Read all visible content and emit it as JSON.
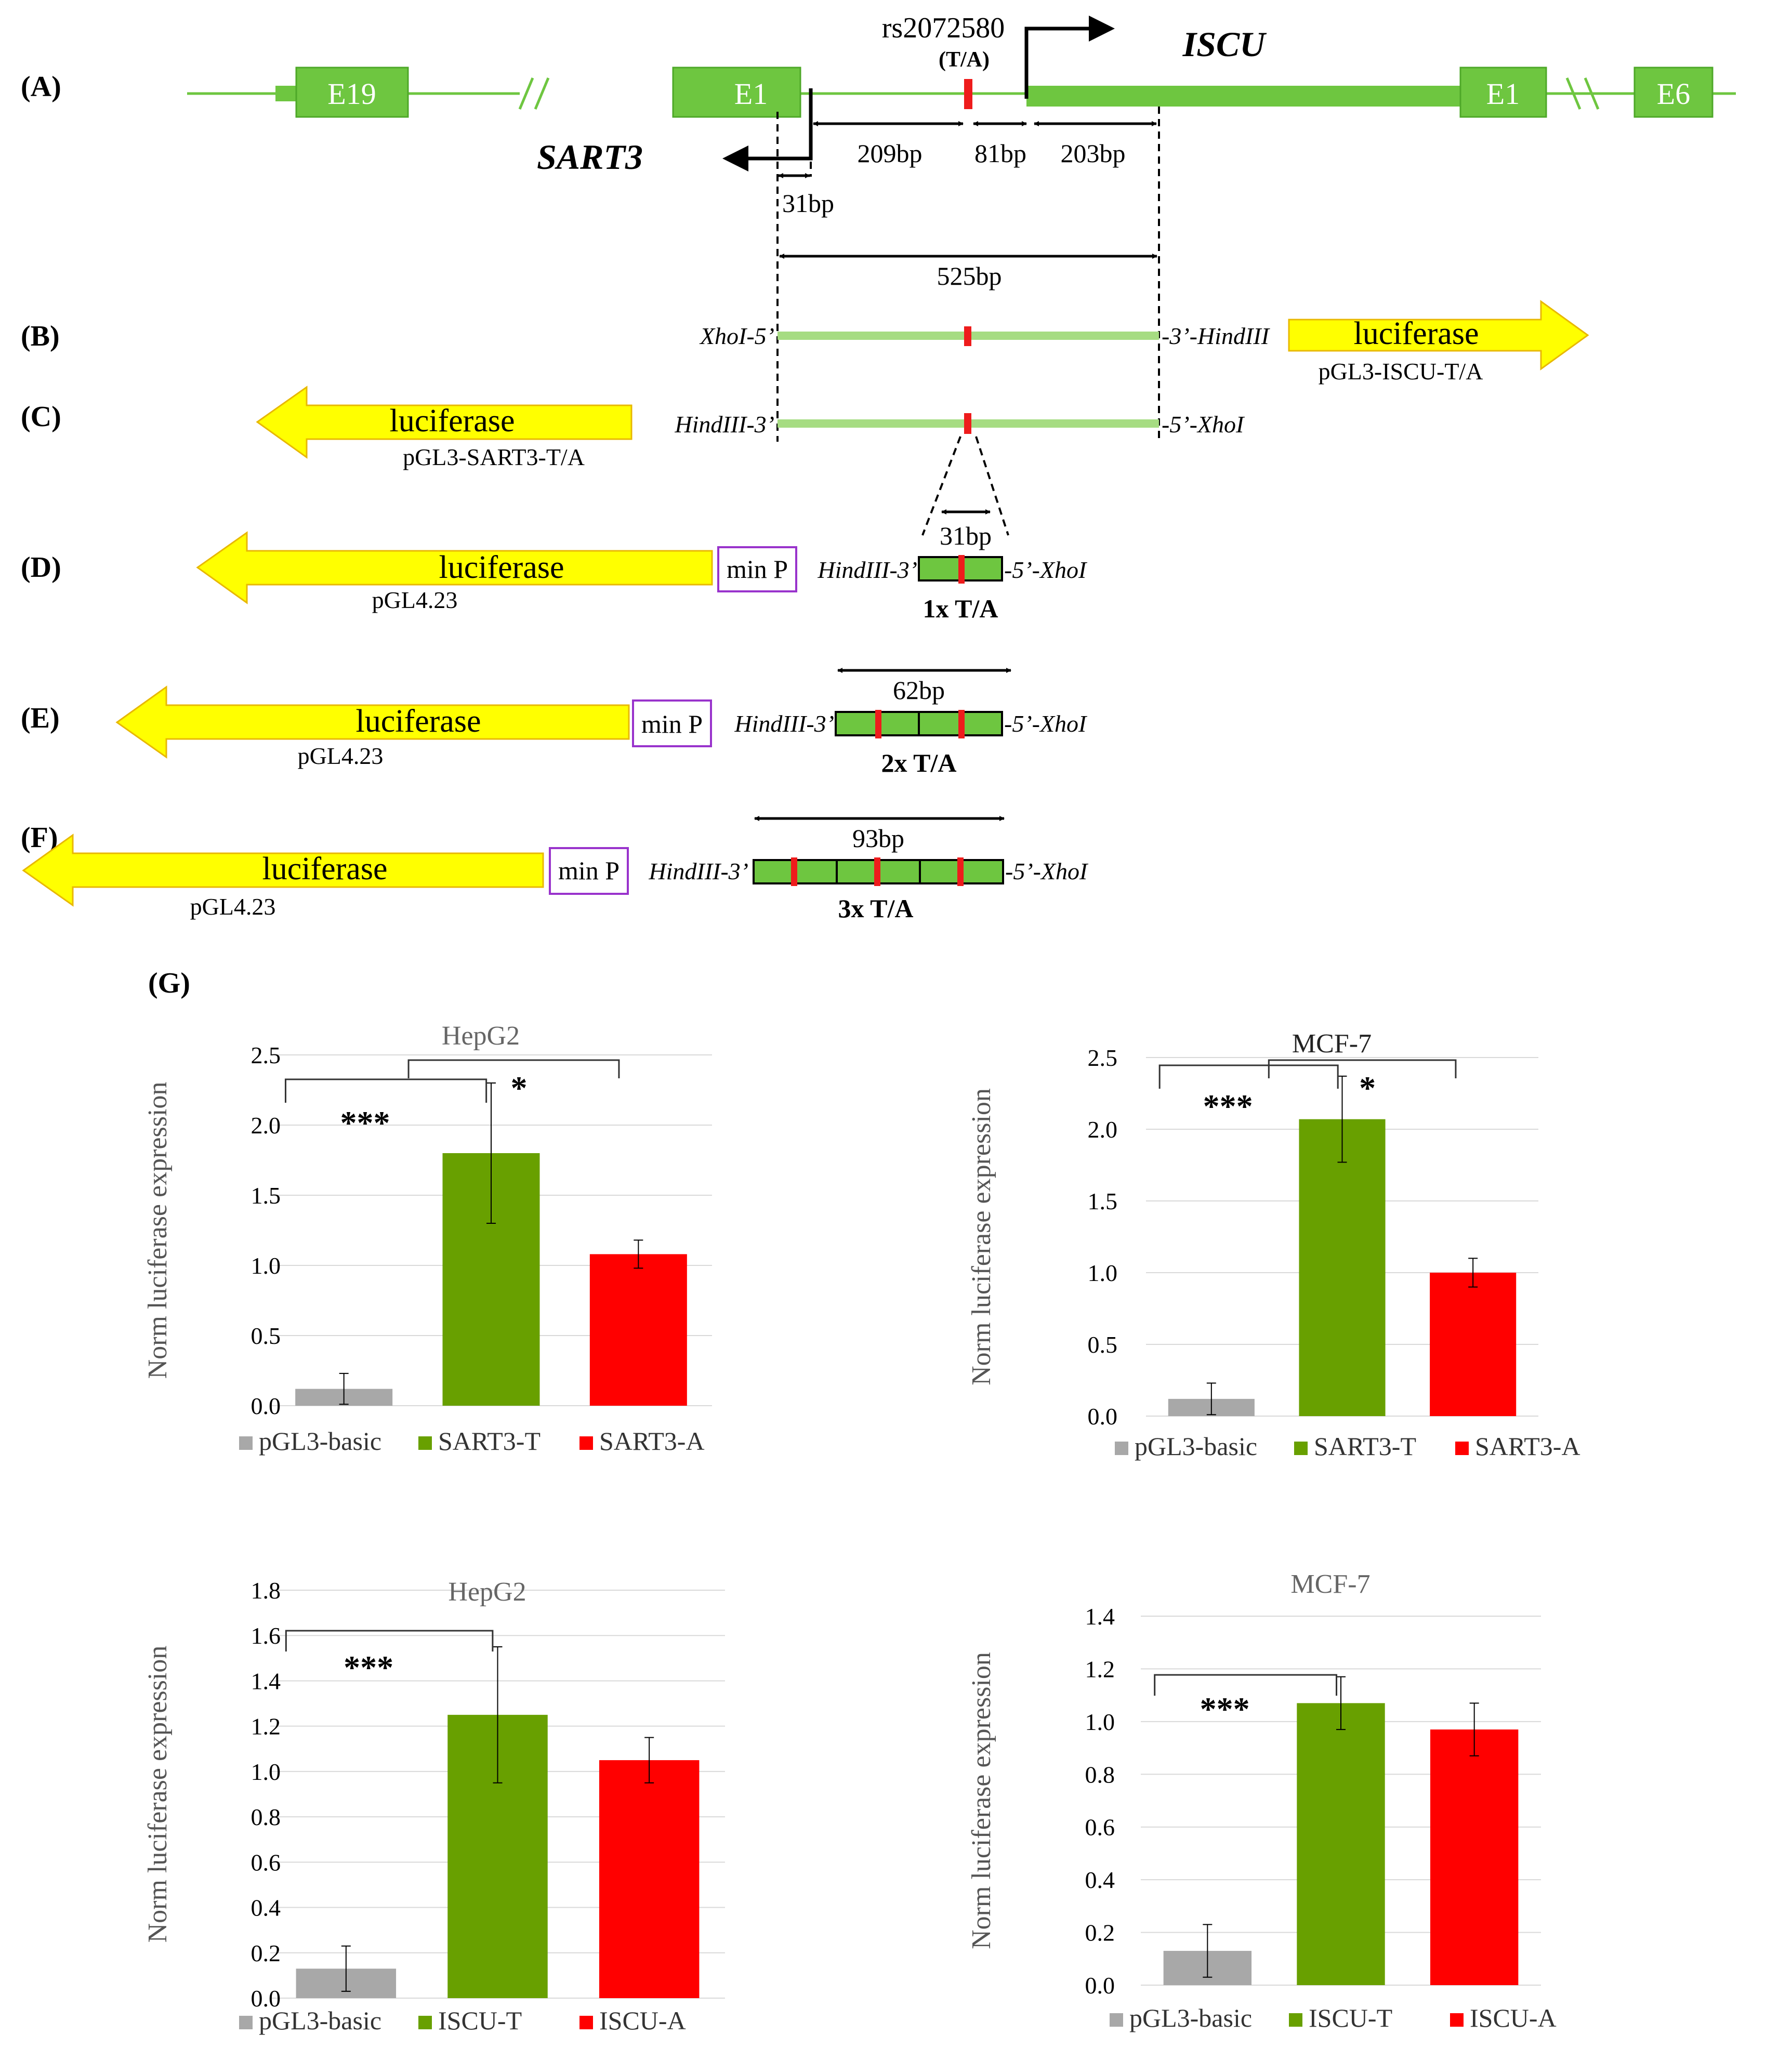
{
  "colors": {
    "exon": "#6ec640",
    "exon_light": "#a6dc82",
    "snp": "#ee1c1c",
    "luciferase": "#ffff00",
    "luc_edge": "#e8b800",
    "minp_box": "#9933cc",
    "gray_bar": "#a8a8a8",
    "green_bar": "#68a000",
    "red_bar": "#ff0000"
  },
  "panel_labels": {
    "a": "(A)",
    "b": "(B)",
    "c": "(C)",
    "d": "(D)",
    "e": "(E)",
    "f": "(F)",
    "g": "(G)"
  },
  "gene_map": {
    "exon_e19": "E19",
    "exon_e1_sart3": "E1",
    "exon_e1_iscu": "E1",
    "exon_e6": "E6",
    "snp_name": "rs2072580",
    "snp_alleles": "(T/A)",
    "gene_iscu": "ISCU",
    "gene_sart3": "SART3",
    "dist_31": "31bp",
    "dist_209": "209bp",
    "dist_81": "81bp",
    "dist_203": "203bp",
    "dist_525": "525bp"
  },
  "constructs": {
    "b_left_site": "XhoI-5’",
    "b_right_site": "-3’-HindIII",
    "b_reporter": "luciferase",
    "b_plasmid": "pGL3-ISCU-T/A",
    "c_left_site": "HindIII-3’",
    "c_right_site": "-5’-XhoI",
    "c_reporter": "luciferase",
    "c_plasmid": "pGL3-SART3-T/A",
    "d_reporter": "luciferase",
    "d_plasmid": "pGL4.23",
    "d_minp": "min P",
    "d_left_site": "HindIII-3’",
    "d_right_site": "-5’-XhoI",
    "d_len": "31bp",
    "d_copies": "1x T/A",
    "e_reporter": "luciferase",
    "e_plasmid": "pGL4.23",
    "e_minp": "min P",
    "e_left_site": "HindIII-3’",
    "e_right_site": "-5’-XhoI",
    "e_len": "62bp",
    "e_copies": "2x T/A",
    "f_reporter": "luciferase",
    "f_plasmid": "pGL4.23",
    "f_minp": "min P",
    "f_left_site": "HindIII-3’",
    "f_right_site": "-5’-XhoI",
    "f_len": "93bp",
    "f_copies": "3x T/A"
  },
  "chart_data": [
    {
      "type": "bar",
      "title": "HepG2",
      "ylabel": "Norm luciferase expression",
      "xlabel": "",
      "categories": [
        "pGL3-basic",
        "SART3-T",
        "SART3-A"
      ],
      "values": [
        0.12,
        1.8,
        1.08
      ],
      "errors": [
        0.11,
        0.5,
        0.1
      ],
      "ylim": [
        0,
        2.5
      ],
      "yticks": [
        "0.0",
        "0.5",
        "1.0",
        "1.5",
        "2.0",
        "2.5"
      ],
      "significance": [
        "***",
        "*"
      ],
      "legend": "bottom",
      "grid": true
    },
    {
      "type": "bar",
      "title": "MCF-7",
      "ylabel": "Norm luciferase expression",
      "xlabel": "",
      "categories": [
        "pGL3-basic",
        "SART3-T",
        "SART3-A"
      ],
      "values": [
        0.12,
        2.07,
        1.0
      ],
      "errors": [
        0.11,
        0.3,
        0.1
      ],
      "ylim": [
        0,
        2.5
      ],
      "yticks": [
        "0.0",
        "0.5",
        "1.0",
        "1.5",
        "2.0",
        "2.5"
      ],
      "significance": [
        "***",
        "*"
      ],
      "legend": "bottom",
      "grid": true
    },
    {
      "type": "bar",
      "title": "HepG2",
      "ylabel": "Norm luciferase expression",
      "xlabel": "",
      "categories": [
        "pGL3-basic",
        "ISCU-T",
        "ISCU-A"
      ],
      "values": [
        0.13,
        1.25,
        1.05
      ],
      "errors": [
        0.1,
        0.3,
        0.1
      ],
      "ylim": [
        0,
        1.8
      ],
      "yticks": [
        "0.0",
        "0.2",
        "0.4",
        "0.6",
        "0.8",
        "1.0",
        "1.2",
        "1.4",
        "1.6",
        "1.8"
      ],
      "significance": [
        "***"
      ],
      "legend": "bottom",
      "grid": true
    },
    {
      "type": "bar",
      "title": "MCF-7",
      "ylabel": "Norm luciferase expression",
      "xlabel": "",
      "categories": [
        "pGL3-basic",
        "ISCU-T",
        "ISCU-A"
      ],
      "values": [
        0.13,
        1.07,
        0.97
      ],
      "errors": [
        0.1,
        0.1,
        0.1
      ],
      "ylim": [
        0,
        1.4
      ],
      "yticks": [
        "0.0",
        "0.2",
        "0.4",
        "0.6",
        "0.8",
        "1.0",
        "1.2",
        "1.4"
      ],
      "significance": [
        "***"
      ],
      "legend": "bottom",
      "grid": true
    }
  ]
}
